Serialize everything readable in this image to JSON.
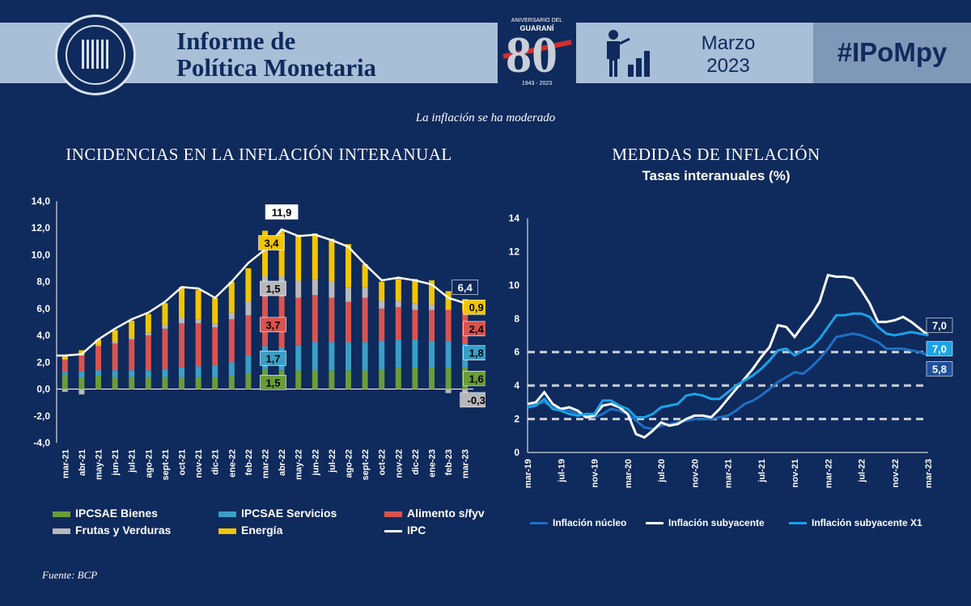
{
  "header": {
    "report_title_line1": "Informe de",
    "report_title_line2": "Política Monetaria",
    "seal_name": "bcp-seal-logo",
    "anniversary_number": "80",
    "anniversary_top": "ANIVERSARIO DEL",
    "anniversary_currency": "GUARANÍ",
    "anniversary_years": "1943 - 2023",
    "month": "Marzo",
    "year": "2023",
    "hashtag": "#IPoMpy"
  },
  "subtitle": "La inflación se ha moderado",
  "source": "Fuente: BCP",
  "colors": {
    "background": "#0f2a5c",
    "banner": "#a9bfd8",
    "bienes": "#6a9c3a",
    "servicios": "#3a9fc6",
    "alimento": "#d9534f",
    "frutas": "#b8b8bc",
    "energia": "#f2c500",
    "ipc": "#ffffff",
    "nucleo": "#1f6fc4",
    "subyacente": "#ffffff",
    "subyacente_x1": "#1aa3e8"
  },
  "chart_data": [
    {
      "type": "bar",
      "stacked": true,
      "title": "INCIDENCIAS EN LA INFLACIÓN INTERANUAL",
      "categories": [
        "mar-21",
        "abr-21",
        "may-21",
        "jun-21",
        "jul-21",
        "ago-21",
        "sept-21",
        "oct-21",
        "nov-21",
        "dic-21",
        "ene-22",
        "feb-22",
        "mar-22",
        "abr-22",
        "may-22",
        "jun-22",
        "jul-22",
        "ago-22",
        "sept-22",
        "oct-22",
        "nov-22",
        "dic-22",
        "ene-23",
        "feb-23",
        "mar-23"
      ],
      "ylim": [
        -4,
        14
      ],
      "yticks": [
        "14,0",
        "12,0",
        "10,0",
        "8,0",
        "6,0",
        "4,0",
        "2,0",
        "0,0",
        "-2,0",
        "-4,0"
      ],
      "series": [
        {
          "name": "IPCSAE Bienes",
          "values": [
            1.1,
            0.9,
            1.0,
            0.9,
            0.9,
            0.9,
            0.9,
            0.9,
            0.9,
            0.9,
            1.0,
            1.2,
            1.5,
            1.4,
            1.4,
            1.4,
            1.4,
            1.4,
            1.4,
            1.5,
            1.6,
            1.6,
            1.6,
            1.6,
            1.6
          ]
        },
        {
          "name": "IPCSAE Servicios",
          "values": [
            0.2,
            0.4,
            0.4,
            0.5,
            0.5,
            0.5,
            0.6,
            0.7,
            0.8,
            0.9,
            1.0,
            1.3,
            1.7,
            1.7,
            1.9,
            2.1,
            2.1,
            2.1,
            2.1,
            2.1,
            2.1,
            2.1,
            2.0,
            2.0,
            1.8
          ]
        },
        {
          "name": "Alimento s/fyv",
          "values": [
            0.9,
            1.2,
            1.8,
            2.0,
            2.3,
            2.6,
            3.0,
            3.3,
            3.2,
            2.8,
            3.2,
            3.0,
            3.7,
            3.8,
            3.5,
            3.5,
            3.3,
            3.0,
            3.3,
            2.4,
            2.4,
            2.2,
            2.3,
            2.3,
            2.4
          ]
        },
        {
          "name": "Frutas y Verduras",
          "values": [
            -0.2,
            -0.4,
            0.1,
            0.1,
            0.1,
            0.2,
            0.3,
            0.4,
            0.3,
            0.3,
            0.5,
            1.0,
            1.5,
            1.5,
            1.3,
            1.2,
            1.2,
            1.1,
            0.8,
            0.6,
            0.5,
            0.5,
            0.4,
            -0.3,
            -0.3
          ]
        },
        {
          "name": "Energía",
          "values": [
            0.3,
            0.4,
            0.4,
            0.9,
            1.3,
            1.4,
            1.6,
            2.3,
            2.2,
            1.9,
            2.3,
            2.5,
            3.4,
            3.4,
            3.4,
            3.4,
            3.2,
            3.2,
            1.7,
            1.4,
            1.6,
            1.8,
            1.8,
            1.4,
            0.9
          ]
        }
      ],
      "ipc": {
        "name": "IPC",
        "values": [
          2.5,
          2.6,
          3.7,
          4.5,
          5.2,
          5.7,
          6.5,
          7.6,
          7.5,
          6.8,
          8.0,
          9.4,
          10.4,
          11.9,
          11.4,
          11.5,
          11.1,
          10.6,
          9.3,
          8.1,
          8.3,
          8.1,
          7.8,
          6.8,
          6.4
        ]
      },
      "labels": {
        "ipc_peak": "11,9",
        "ipc_last": "6,4",
        "mar22_energia": "3,4",
        "mar22_frutas": "1,5",
        "mar22_alimento": "3,7",
        "mar22_servicios": "1,7",
        "mar22_bienes": "1,5",
        "mar23_energia": "0,9",
        "mar23_alimento": "2,4",
        "mar23_servicios": "1,8",
        "mar23_bienes": "1,6",
        "mar23_frutas": "-0,3"
      },
      "legend": [
        "IPCSAE Bienes",
        "IPCSAE Servicios",
        "Alimento s/fyv",
        "Frutas y Verduras",
        "Energía",
        "IPC"
      ]
    },
    {
      "type": "line",
      "title": "MEDIDAS DE INFLACIÓN",
      "subtitle": "Tasas interanuales (%)",
      "ylim": [
        0,
        14
      ],
      "yticks": [
        "14",
        "12",
        "10",
        "8",
        "6",
        "4",
        "2",
        "0"
      ],
      "xticks": [
        "mar-19",
        "jul-19",
        "nov-19",
        "mar-20",
        "jul-20",
        "nov-20",
        "mar-21",
        "jul-21",
        "nov-21",
        "mar-22",
        "jul-22",
        "nov-22",
        "mar-23"
      ],
      "x_months": [
        "mar-19",
        "abr-19",
        "may-19",
        "jun-19",
        "jul-19",
        "ago-19",
        "sep-19",
        "oct-19",
        "nov-19",
        "dic-19",
        "ene-20",
        "feb-20",
        "mar-20",
        "abr-20",
        "may-20",
        "jun-20",
        "jul-20",
        "ago-20",
        "sep-20",
        "oct-20",
        "nov-20",
        "dic-20",
        "ene-21",
        "feb-21",
        "mar-21",
        "abr-21",
        "may-21",
        "jun-21",
        "jul-21",
        "ago-21",
        "sep-21",
        "oct-21",
        "nov-21",
        "dic-21",
        "ene-22",
        "feb-22",
        "mar-22",
        "abr-22",
        "may-22",
        "jun-22",
        "jul-22",
        "ago-22",
        "sep-22",
        "oct-22",
        "nov-22",
        "dic-22",
        "ene-23",
        "feb-23",
        "mar-23"
      ],
      "reference_lines": [
        2,
        4,
        6
      ],
      "series": [
        {
          "name": "Inflación núcleo",
          "values": [
            2.8,
            2.9,
            3.0,
            2.7,
            2.6,
            2.5,
            2.3,
            2.2,
            2.1,
            2.3,
            2.6,
            2.5,
            2.3,
            1.9,
            1.5,
            1.4,
            1.6,
            1.7,
            1.8,
            1.9,
            2.0,
            2.0,
            2.0,
            2.1,
            2.2,
            2.5,
            2.9,
            3.1,
            3.4,
            3.8,
            4.2,
            4.5,
            4.8,
            4.7,
            5.1,
            5.6,
            6.2,
            6.9,
            7.0,
            7.1,
            7.0,
            6.8,
            6.6,
            6.2,
            6.2,
            6.2,
            6.1,
            6.0,
            5.8
          ]
        },
        {
          "name": "Inflación subyacente",
          "values": [
            2.9,
            3.0,
            3.6,
            2.9,
            2.6,
            2.7,
            2.5,
            2.1,
            2.2,
            2.8,
            2.9,
            2.7,
            2.3,
            1.1,
            0.9,
            1.3,
            1.8,
            1.6,
            1.7,
            2.0,
            2.2,
            2.2,
            2.1,
            2.6,
            3.2,
            3.8,
            4.4,
            5.0,
            5.7,
            6.3,
            7.6,
            7.5,
            6.9,
            7.6,
            8.2,
            9.0,
            10.6,
            10.5,
            10.5,
            10.4,
            9.7,
            8.9,
            7.8,
            7.8,
            7.9,
            8.1,
            7.8,
            7.4,
            7.0
          ]
        },
        {
          "name": "Inflación subyacente X1",
          "values": [
            2.7,
            2.8,
            3.2,
            2.6,
            2.5,
            2.3,
            2.2,
            2.3,
            2.3,
            3.1,
            3.1,
            2.8,
            2.6,
            2.1,
            2.1,
            2.3,
            2.7,
            2.8,
            2.9,
            3.4,
            3.5,
            3.4,
            3.2,
            3.2,
            3.6,
            4.0,
            4.3,
            4.6,
            5.0,
            5.5,
            6.1,
            6.2,
            5.8,
            6.1,
            6.3,
            6.8,
            7.5,
            8.2,
            8.2,
            8.3,
            8.3,
            8.1,
            7.5,
            7.1,
            7.0,
            7.1,
            7.2,
            7.1,
            7.0
          ]
        }
      ],
      "end_labels": {
        "subyacente": "7,0",
        "subyacente_x1": "7,0",
        "nucleo": "5,8"
      },
      "legend": [
        "Inflación núcleo",
        "Inflación subyacente",
        "Inflación subyacente X1"
      ]
    }
  ]
}
